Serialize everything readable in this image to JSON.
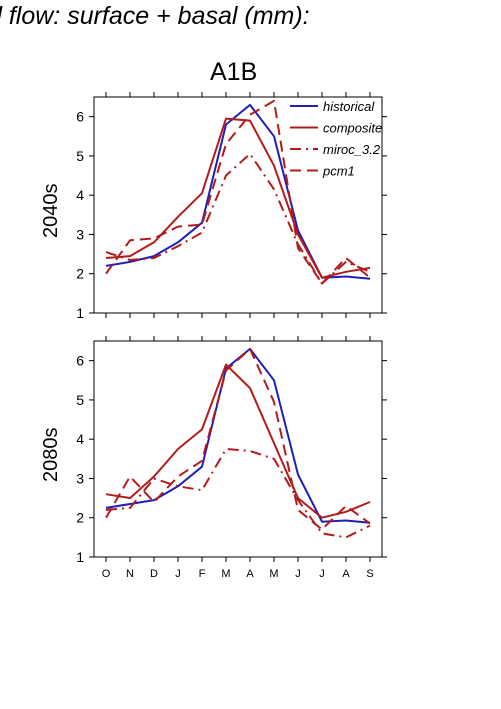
{
  "figure_title": "d flow: surface + basal (mm):",
  "scenario": "A1B",
  "colors": {
    "historical": "#1f1fb8",
    "scenario": "#b31b1b",
    "axis": "#000000"
  },
  "chart_data": [
    {
      "type": "line",
      "row_label": "2040s",
      "categories": [
        "O",
        "N",
        "D",
        "J",
        "F",
        "M",
        "A",
        "M",
        "J",
        "J",
        "A",
        "S"
      ],
      "ylim": [
        1,
        6.5
      ],
      "yticks": [
        1,
        2,
        3,
        4,
        5,
        6
      ],
      "legend_position": "top-right",
      "series": [
        {
          "name": "historical",
          "style": "solid",
          "color": "#1f1fb8",
          "values": [
            2.2,
            2.3,
            2.45,
            2.8,
            3.3,
            5.8,
            6.3,
            5.5,
            3.1,
            1.9,
            1.93,
            1.87
          ]
        },
        {
          "name": "composite",
          "style": "solid",
          "color": "#b31b1b",
          "values": [
            2.4,
            2.45,
            2.8,
            3.45,
            4.05,
            5.95,
            5.9,
            4.75,
            3.0,
            1.9,
            2.05,
            2.15
          ]
        },
        {
          "name": "miroc_3.2",
          "style": "dashdot",
          "color": "#b31b1b",
          "values": [
            2.55,
            2.35,
            2.4,
            2.7,
            3.05,
            4.5,
            5.05,
            4.15,
            2.75,
            1.75,
            2.3,
            2.05
          ]
        },
        {
          "name": "pcm1",
          "style": "dashed",
          "color": "#b31b1b",
          "values": [
            2.0,
            2.85,
            2.9,
            3.2,
            3.25,
            5.3,
            6.05,
            6.4,
            2.65,
            1.75,
            2.4,
            1.9
          ]
        }
      ]
    },
    {
      "type": "line",
      "row_label": "2080s",
      "categories": [
        "O",
        "N",
        "D",
        "J",
        "F",
        "M",
        "A",
        "M",
        "J",
        "J",
        "A",
        "S"
      ],
      "ylim": [
        1,
        6.5
      ],
      "yticks": [
        1,
        2,
        3,
        4,
        5,
        6
      ],
      "series": [
        {
          "name": "historical",
          "style": "solid",
          "color": "#1f1fb8",
          "values": [
            2.25,
            2.35,
            2.45,
            2.8,
            3.3,
            5.8,
            6.3,
            5.5,
            3.1,
            1.9,
            1.93,
            1.87
          ]
        },
        {
          "name": "composite",
          "style": "solid",
          "color": "#b31b1b",
          "values": [
            2.6,
            2.5,
            3.05,
            3.75,
            4.25,
            5.9,
            5.3,
            3.9,
            2.5,
            2.0,
            2.15,
            2.4
          ]
        },
        {
          "name": "miroc_3.2",
          "style": "dashdot",
          "color": "#b31b1b",
          "values": [
            2.2,
            2.25,
            3.0,
            2.8,
            2.7,
            3.75,
            3.7,
            3.5,
            2.45,
            1.6,
            1.5,
            1.8
          ]
        },
        {
          "name": "pcm1",
          "style": "dashed",
          "color": "#b31b1b",
          "values": [
            2.0,
            3.05,
            2.4,
            3.05,
            3.45,
            5.75,
            6.3,
            4.95,
            2.2,
            1.7,
            2.3,
            1.85
          ]
        }
      ]
    }
  ]
}
